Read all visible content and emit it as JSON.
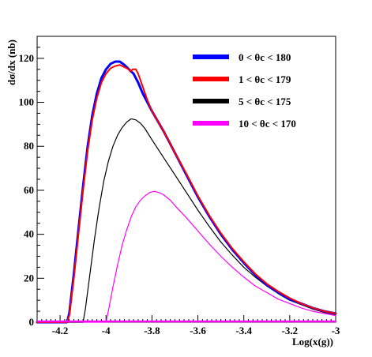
{
  "chart_data": {
    "type": "line",
    "title": "",
    "xlabel": "Log(x(g))",
    "ylabel": "dσ/dx (nb)",
    "xlim": [
      -4.3,
      -3.0
    ],
    "ylim": [
      0,
      130
    ],
    "x_ticks": [
      {
        "value": -4.2,
        "label": "-4.2"
      },
      {
        "value": -4.0,
        "label": "-4"
      },
      {
        "value": -3.8,
        "label": "-3.8"
      },
      {
        "value": -3.6,
        "label": "-3.6"
      },
      {
        "value": -3.4,
        "label": "-3.4"
      },
      {
        "value": -3.2,
        "label": "-3.2"
      },
      {
        "value": -3.0,
        "label": "-3"
      }
    ],
    "y_ticks": [
      {
        "value": 0,
        "label": "0"
      },
      {
        "value": 20,
        "label": "20"
      },
      {
        "value": 40,
        "label": "40"
      },
      {
        "value": 60,
        "label": "60"
      },
      {
        "value": 80,
        "label": "80"
      },
      {
        "value": 100,
        "label": "100"
      },
      {
        "value": 120,
        "label": "120"
      }
    ],
    "grid": false,
    "legend_position": "top-right",
    "series": [
      {
        "name": "0 < θc < 180",
        "color": "#0000ff",
        "stroke_width": 3,
        "x": [
          -4.3,
          -4.17,
          -4.16,
          -4.14,
          -4.12,
          -4.1,
          -4.08,
          -4.06,
          -4.04,
          -4.02,
          -4.0,
          -3.98,
          -3.96,
          -3.94,
          -3.92,
          -3.9,
          -3.88,
          -3.86,
          -3.84,
          -3.82,
          -3.8,
          -3.75,
          -3.7,
          -3.65,
          -3.6,
          -3.55,
          -3.5,
          -3.45,
          -3.4,
          -3.35,
          -3.3,
          -3.25,
          -3.2,
          -3.15,
          -3.1,
          -3.05,
          -3.0
        ],
        "y": [
          0,
          0,
          4,
          22,
          42,
          62,
          80,
          94,
          104,
          111,
          115,
          117.5,
          118.5,
          118.5,
          117,
          115,
          113,
          109,
          104,
          100,
          96,
          87,
          77,
          67,
          57,
          48,
          40,
          33,
          27,
          21.5,
          17,
          13.5,
          10.5,
          8.5,
          6.5,
          5,
          4
        ]
      },
      {
        "name": "1 < θc < 179",
        "color": "#ff0000",
        "stroke_width": 2,
        "x": [
          -4.3,
          -4.17,
          -4.16,
          -4.14,
          -4.12,
          -4.1,
          -4.08,
          -4.06,
          -4.04,
          -4.02,
          -4.0,
          -3.98,
          -3.96,
          -3.94,
          -3.92,
          -3.9,
          -3.895,
          -3.885,
          -3.87,
          -3.86,
          -3.84,
          -3.82,
          -3.8,
          -3.75,
          -3.7,
          -3.65,
          -3.6,
          -3.55,
          -3.5,
          -3.45,
          -3.4,
          -3.35,
          -3.3,
          -3.25,
          -3.2,
          -3.15,
          -3.1,
          -3.05,
          -3.0
        ],
        "y": [
          0,
          0,
          3,
          20,
          40,
          60,
          78,
          92,
          102,
          109,
          113,
          115.5,
          116.5,
          117,
          116,
          115,
          114,
          115,
          115,
          113,
          107,
          101,
          96,
          87,
          77,
          67.5,
          57.5,
          48.5,
          40.5,
          33.5,
          27.5,
          22,
          17.5,
          14,
          11,
          8.5,
          6.5,
          5,
          4
        ]
      },
      {
        "name": "5 < θc < 175",
        "color": "#000000",
        "stroke_width": 1.2,
        "x": [
          -4.3,
          -4.1,
          -4.09,
          -4.07,
          -4.05,
          -4.03,
          -4.01,
          -3.99,
          -3.97,
          -3.95,
          -3.93,
          -3.91,
          -3.89,
          -3.87,
          -3.85,
          -3.83,
          -3.8,
          -3.75,
          -3.7,
          -3.65,
          -3.6,
          -3.55,
          -3.5,
          -3.45,
          -3.4,
          -3.35,
          -3.3,
          -3.25,
          -3.2,
          -3.15,
          -3.1,
          -3.05,
          -3.0
        ],
        "y": [
          0,
          0,
          6,
          22,
          38,
          52,
          64,
          73,
          80,
          85,
          88.5,
          91,
          92.5,
          92,
          90.5,
          88,
          83,
          75,
          67,
          59,
          51,
          43.5,
          36.5,
          30.5,
          25,
          20.5,
          16.5,
          13,
          10,
          8,
          6,
          4.5,
          3.5
        ]
      },
      {
        "name": "10 < θc < 170",
        "color": "#ff00ff",
        "stroke_width": 1.2,
        "x": [
          -4.3,
          -4.0,
          -3.99,
          -3.97,
          -3.95,
          -3.93,
          -3.91,
          -3.89,
          -3.87,
          -3.85,
          -3.83,
          -3.81,
          -3.79,
          -3.77,
          -3.75,
          -3.72,
          -3.7,
          -3.65,
          -3.6,
          -3.55,
          -3.5,
          -3.45,
          -3.4,
          -3.35,
          -3.3,
          -3.25,
          -3.2,
          -3.15,
          -3.1,
          -3.05,
          -3.0
        ],
        "y": [
          0,
          0,
          5,
          16,
          26,
          35,
          42,
          48,
          52.5,
          55.5,
          57.5,
          59,
          59.5,
          59,
          58,
          55.5,
          53,
          47.5,
          41.5,
          35.5,
          30,
          25,
          20.5,
          16.5,
          13.5,
          10.5,
          8.5,
          6.5,
          5,
          4,
          3
        ]
      }
    ]
  }
}
